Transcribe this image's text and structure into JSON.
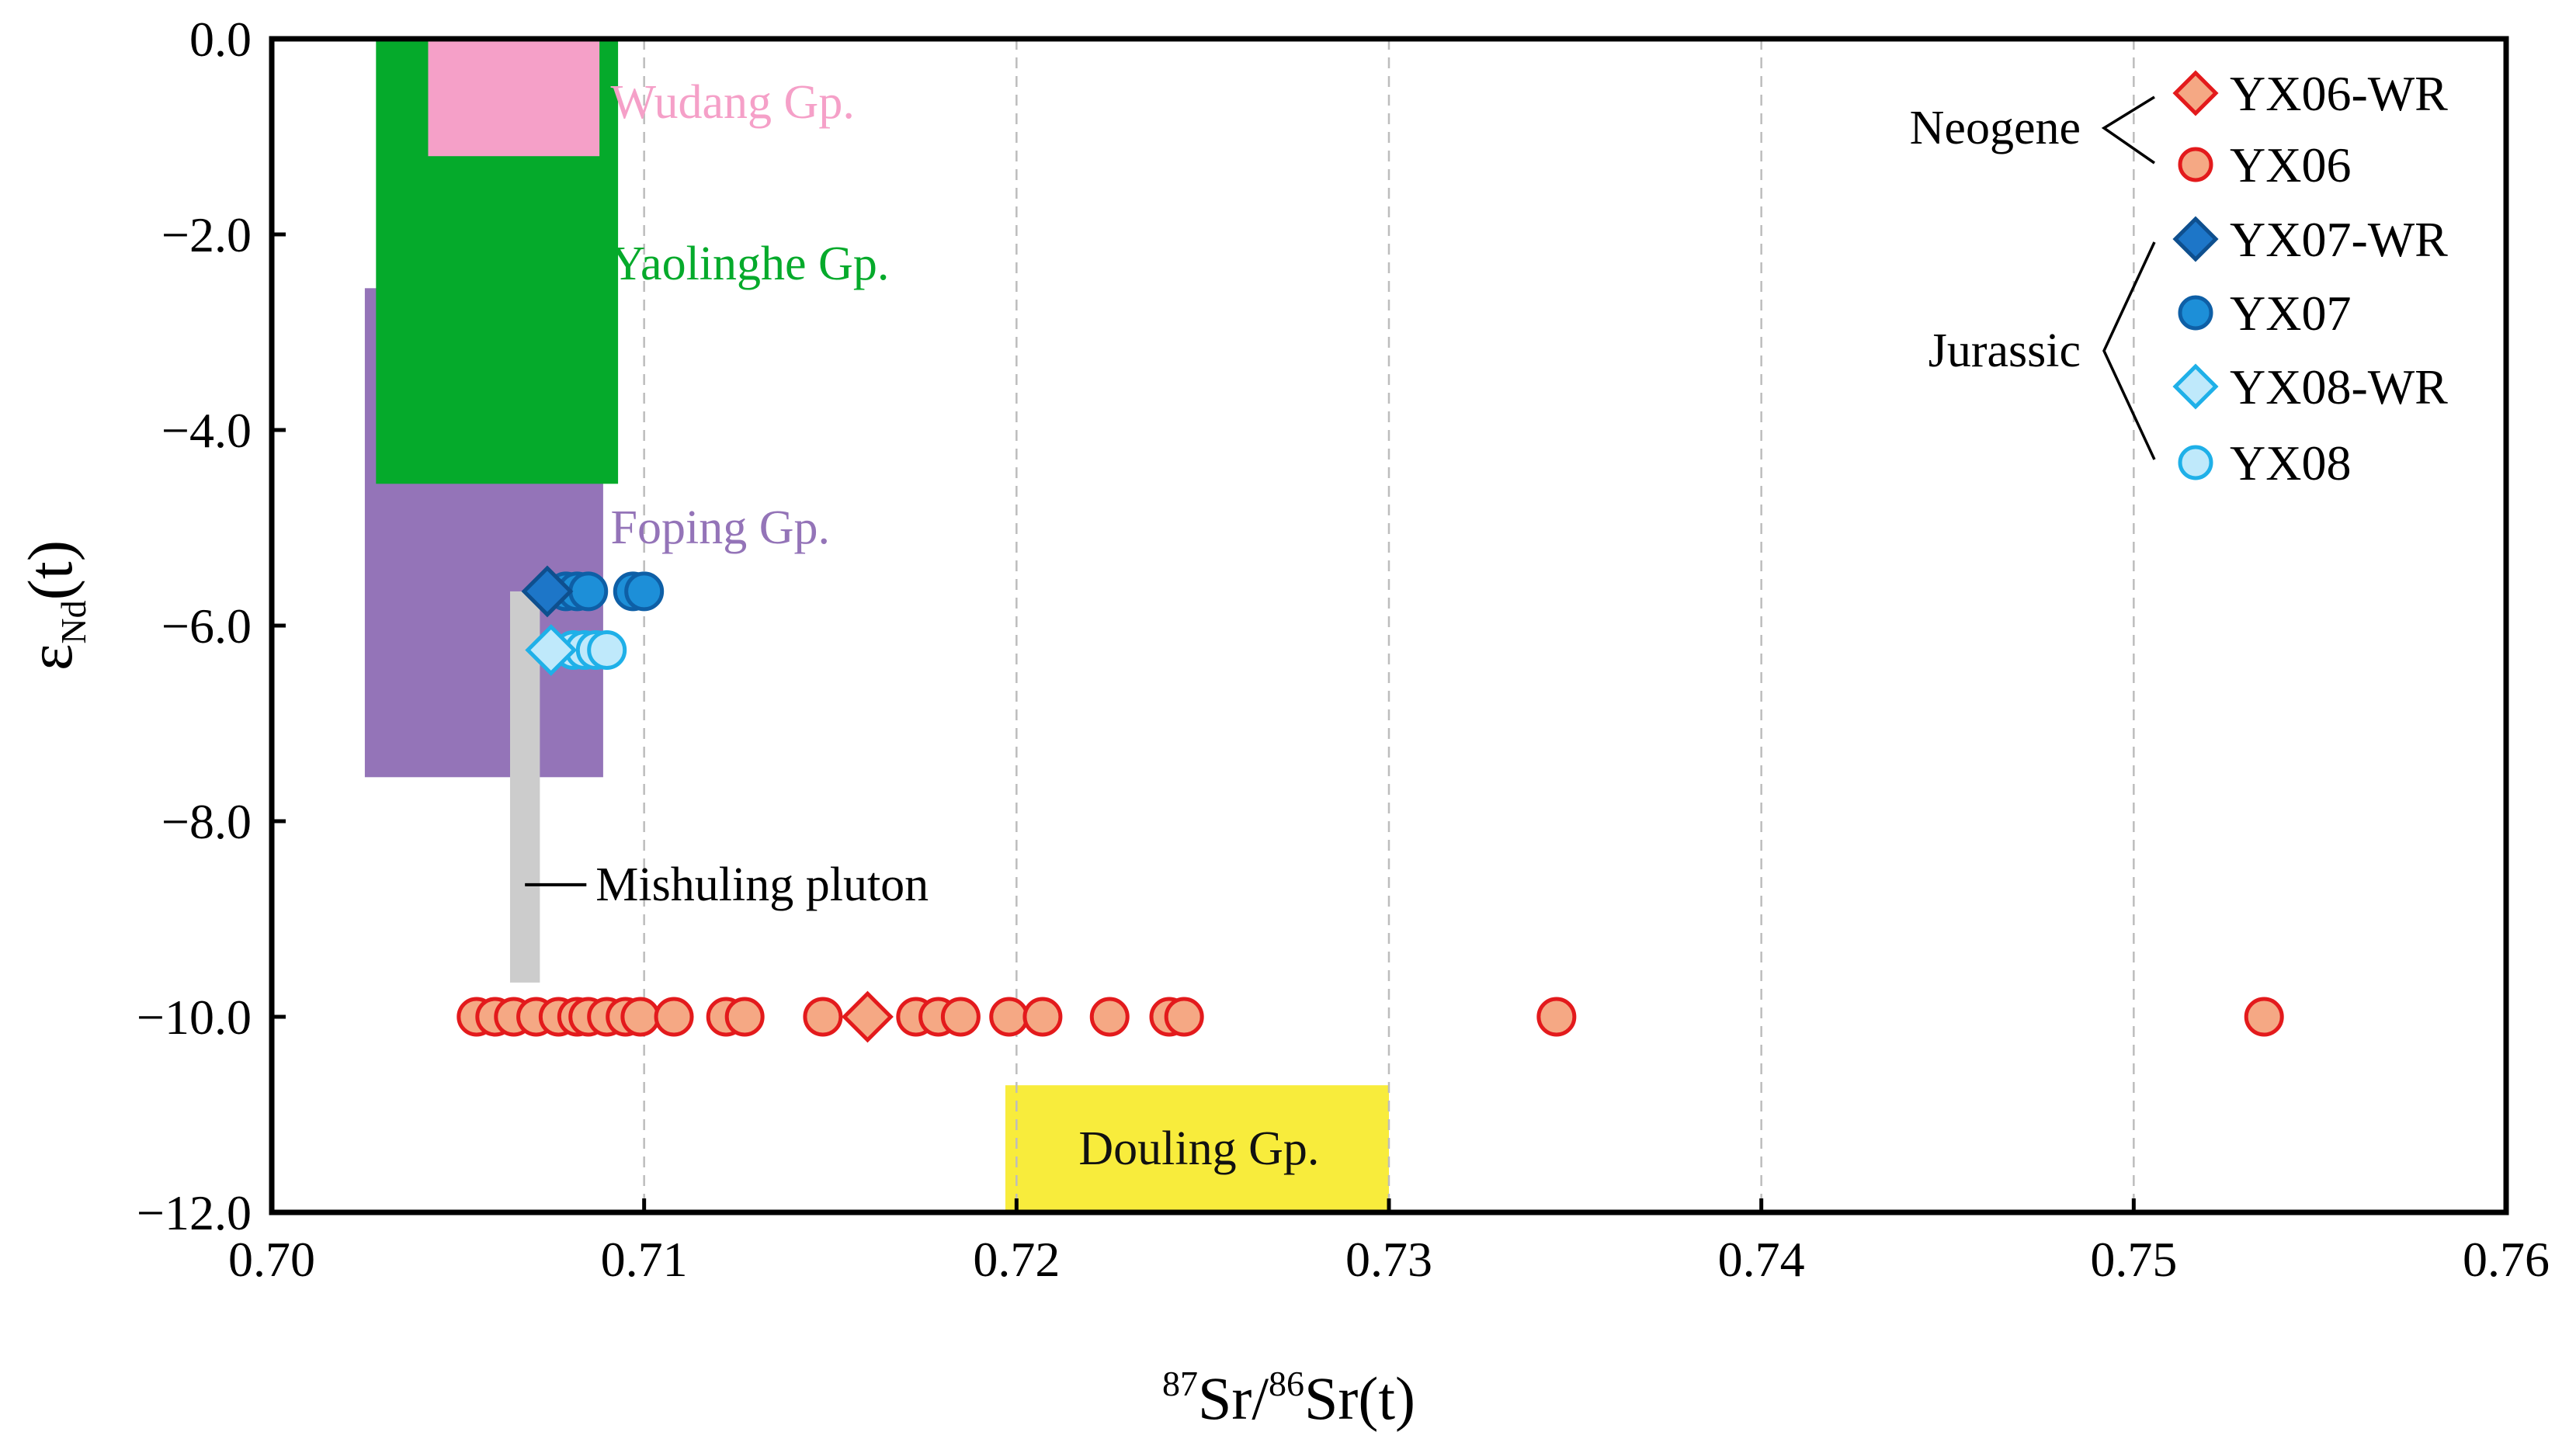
{
  "chart_data": {
    "type": "scatter",
    "title": "",
    "xlabel": {
      "sup1": "87",
      "part1": "Sr/",
      "sup2": "86",
      "part2": "Sr(t)"
    },
    "ylabel": {
      "main": "ε",
      "sub": "Nd",
      "tail": "(t)"
    },
    "xlim": [
      0.7,
      0.76
    ],
    "ylim": [
      -12.0,
      0.0
    ],
    "x_ticks": [
      {
        "value": 0.7,
        "label": "0.70"
      },
      {
        "value": 0.71,
        "label": "0.71"
      },
      {
        "value": 0.72,
        "label": "0.72"
      },
      {
        "value": 0.73,
        "label": "0.73"
      },
      {
        "value": 0.74,
        "label": "0.74"
      },
      {
        "value": 0.75,
        "label": "0.75"
      },
      {
        "value": 0.76,
        "label": "0.76"
      }
    ],
    "y_ticks": [
      {
        "value": 0.0,
        "label": "0.0"
      },
      {
        "value": -2.0,
        "label": "−2.0"
      },
      {
        "value": -4.0,
        "label": "−4.0"
      },
      {
        "value": -6.0,
        "label": "−6.0"
      },
      {
        "value": -8.0,
        "label": "−8.0"
      },
      {
        "value": -10.0,
        "label": "−10.0"
      },
      {
        "value": -12.0,
        "label": "−12.0"
      }
    ],
    "grid": {
      "vertical_dashed": [
        0.71,
        0.72,
        0.73,
        0.74,
        0.75
      ]
    },
    "fields": [
      {
        "name": "Foping Gp.",
        "x": [
          0.7025,
          0.7089
        ],
        "y": [
          -7.55,
          -2.55
        ],
        "color": "#9474b8",
        "label_at": [
          0.7091,
          -5.0
        ],
        "label_color": "#9474b8"
      },
      {
        "name": "Yaolinghe Gp.",
        "x": [
          0.7028,
          0.7093
        ],
        "y": [
          -4.55,
          0.0
        ],
        "color": "#05aa2b",
        "label_at": [
          0.7091,
          -2.3
        ],
        "label_color": "#05aa2b"
      },
      {
        "name": "Wudang Gp.",
        "x": [
          0.7042,
          0.7088
        ],
        "y": [
          -1.2,
          0.0
        ],
        "color": "#f5a0c8",
        "label_at": [
          0.7091,
          -0.65
        ],
        "label_color": "#f5a0c8"
      },
      {
        "name": "Douling Gp.",
        "x": [
          0.7197,
          0.73
        ],
        "y": [
          -12.0,
          -10.7
        ],
        "color": "#f8ec3c",
        "label_at": [
          0.7249,
          -11.35
        ],
        "label_color": "#111111"
      }
    ],
    "mishuling_pluton": {
      "name": "Mishuling pluton",
      "x": [
        0.7064,
        0.7072
      ],
      "y": [
        -9.65,
        -5.65
      ],
      "color": "#cccccc",
      "label_at": [
        0.7087,
        -8.65
      ],
      "leader_from": 0.7068
    },
    "series": [
      {
        "name": "YX06-WR",
        "marker": "diamond",
        "fill": "#f5a884",
        "stroke": "#e31a1c",
        "points": [
          [
            0.716,
            -10.0
          ]
        ]
      },
      {
        "name": "YX06",
        "marker": "circle",
        "fill": "#f5a884",
        "stroke": "#e31a1c",
        "points": [
          [
            0.7055,
            -10.0
          ],
          [
            0.706,
            -10.0
          ],
          [
            0.7065,
            -10.0
          ],
          [
            0.7071,
            -10.0
          ],
          [
            0.7077,
            -10.0
          ],
          [
            0.7082,
            -10.0
          ],
          [
            0.7085,
            -10.0
          ],
          [
            0.709,
            -10.0
          ],
          [
            0.7095,
            -10.0
          ],
          [
            0.7099,
            -10.0
          ],
          [
            0.7108,
            -10.0
          ],
          [
            0.7122,
            -10.0
          ],
          [
            0.7127,
            -10.0
          ],
          [
            0.7148,
            -10.0
          ],
          [
            0.7173,
            -10.0
          ],
          [
            0.7179,
            -10.0
          ],
          [
            0.7185,
            -10.0
          ],
          [
            0.7198,
            -10.0
          ],
          [
            0.7207,
            -10.0
          ],
          [
            0.7225,
            -10.0
          ],
          [
            0.7241,
            -10.0
          ],
          [
            0.7245,
            -10.0
          ],
          [
            0.7345,
            -10.0
          ],
          [
            0.7535,
            -10.0
          ]
        ]
      },
      {
        "name": "YX07-WR",
        "marker": "diamond",
        "fill": "#1d76c8",
        "stroke": "#0e4f8e",
        "points": [
          [
            0.7074,
            -5.65
          ]
        ]
      },
      {
        "name": "YX07",
        "marker": "circle",
        "fill": "#1d8fd8",
        "stroke": "#0e5fa6",
        "points": [
          [
            0.7079,
            -5.65
          ],
          [
            0.7082,
            -5.65
          ],
          [
            0.7085,
            -5.65
          ],
          [
            0.7097,
            -5.65
          ],
          [
            0.71,
            -5.65
          ]
        ]
      },
      {
        "name": "YX08-WR",
        "marker": "diamond",
        "fill": "#bfe9fb",
        "stroke": "#1fb0e8",
        "points": [
          [
            0.7075,
            -6.25
          ]
        ]
      },
      {
        "name": "YX08",
        "marker": "circle",
        "fill": "#bfe9fb",
        "stroke": "#1fb0e8",
        "points": [
          [
            0.7081,
            -6.25
          ],
          [
            0.7084,
            -6.25
          ],
          [
            0.7087,
            -6.25
          ],
          [
            0.709,
            -6.25
          ]
        ]
      }
    ],
    "legend": {
      "placement": "top-right",
      "groups": [
        {
          "label": "Neogene",
          "entries": [
            "YX06-WR",
            "YX06"
          ]
        },
        {
          "label": "Jurassic",
          "entries": [
            "YX07-WR",
            "YX07",
            "YX08-WR",
            "YX08"
          ]
        }
      ]
    }
  }
}
